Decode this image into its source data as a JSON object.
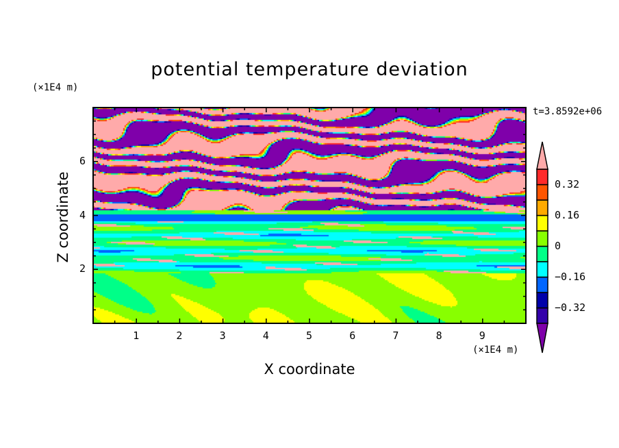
{
  "chart_data": {
    "type": "heatmap",
    "subtype": "filled-contour",
    "title": "potential temperature deviation",
    "xlabel": "X coordinate",
    "ylabel": "Z coordinate",
    "x_unit": "(×1E4 m)",
    "y_unit": "(×1E4 m)",
    "xlim": [
      0,
      10
    ],
    "ylim": [
      0,
      8
    ],
    "x_ticks": [
      "1",
      "2",
      "3",
      "4",
      "5",
      "6",
      "7",
      "8",
      "9"
    ],
    "y_ticks": [
      "2",
      "4",
      "6"
    ],
    "time_annotation": "t=3.8592e+06",
    "colorbar": {
      "levels": [
        -0.4,
        -0.32,
        -0.24,
        -0.16,
        -0.08,
        0,
        0.08,
        0.16,
        0.24,
        0.32,
        0.4
      ],
      "labels": [
        "0.32",
        "0.16",
        "0",
        "−0.16",
        "−0.32"
      ],
      "label_values": [
        0.32,
        0.16,
        0,
        -0.16,
        -0.32
      ],
      "colors": [
        "#7f00aa",
        "#3300aa",
        "#0000aa",
        "#0066ff",
        "#00ffff",
        "#00ff88",
        "#88ff00",
        "#ffff00",
        "#ffaa00",
        "#ff5500",
        "#ff2a2a",
        "#ffaaaa"
      ],
      "extend": "both"
    },
    "description_regions": {
      "upper_layer_z_above_4": "alternating bands below -0.4 and above 0.4",
      "middle_layer_z_2_to_4": "near zero to slightly negative, with scattered positive streaks",
      "lower_layer_z_below_2": "0 to 0.08 with patches above 0.08"
    }
  }
}
